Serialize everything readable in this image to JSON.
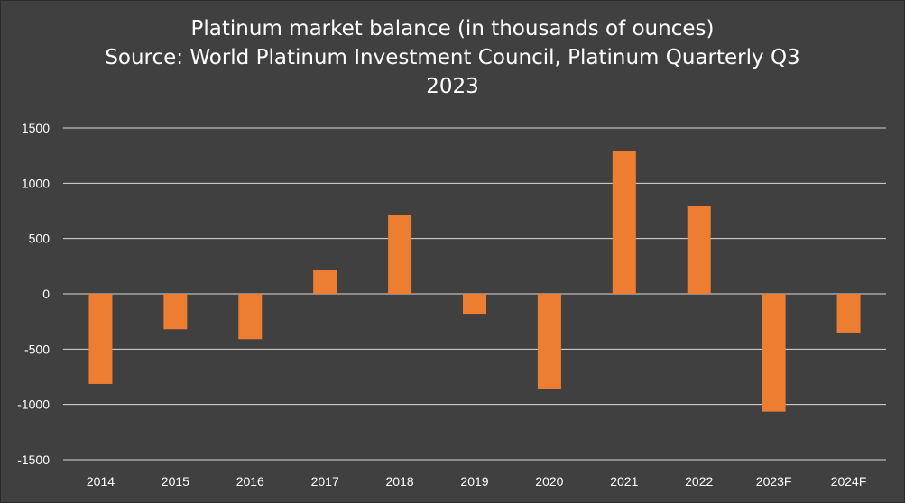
{
  "chart_data": {
    "type": "bar",
    "title_lines": [
      "Platinum market balance (in thousands of ounces)",
      "Source: World Platinum Investment Council, Platinum Quarterly Q3",
      "2023"
    ],
    "categories": [
      "2014",
      "2015",
      "2016",
      "2017",
      "2018",
      "2019",
      "2020",
      "2021",
      "2022",
      "2023F",
      "2024F"
    ],
    "values": [
      -815,
      -320,
      -410,
      220,
      715,
      -180,
      -860,
      1295,
      795,
      -1065,
      -350
    ],
    "ylim": [
      -1500,
      1500
    ],
    "yticks": [
      1500,
      1000,
      500,
      0,
      -500,
      -1000,
      -1500
    ],
    "grid": true,
    "legend": "none",
    "colors": {
      "bar": "#ED7D31",
      "background": "#404040",
      "grid": "#d9d9d9",
      "text": "#ffffff"
    }
  }
}
